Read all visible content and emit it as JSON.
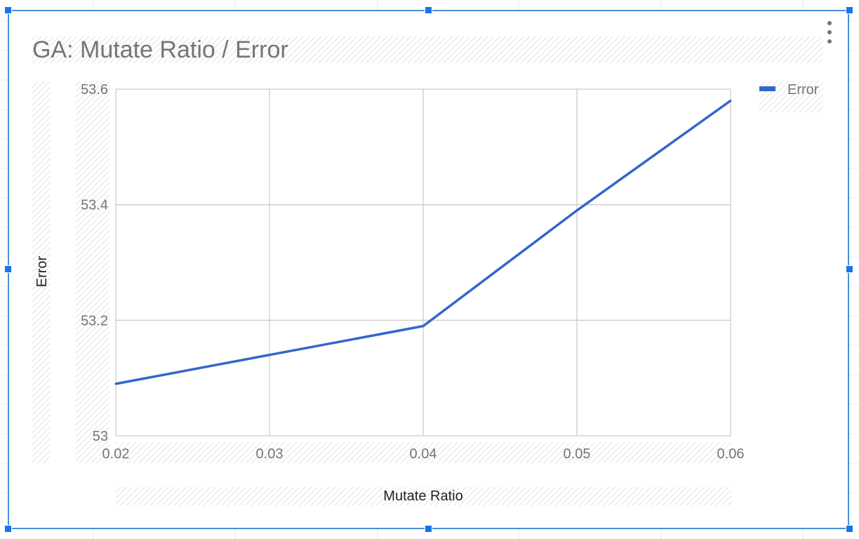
{
  "chart_data": {
    "type": "line",
    "title": "GA: Mutate Ratio / Error",
    "xlabel": "Mutate Ratio",
    "ylabel": "Error",
    "x": [
      0.02,
      0.03,
      0.04,
      0.05,
      0.06
    ],
    "x_ticks": [
      "0.02",
      "0.03",
      "0.04",
      "0.05",
      "0.06"
    ],
    "y_ticks": [
      "53",
      "53.2",
      "53.4",
      "53.6"
    ],
    "xlim": [
      0.02,
      0.06
    ],
    "ylim": [
      53,
      53.6
    ],
    "grid": true,
    "legend_position": "top-right",
    "series": [
      {
        "name": "Error",
        "color": "#3366cc",
        "values": [
          53.09,
          53.14,
          53.19,
          53.39,
          53.58
        ]
      }
    ]
  },
  "icons": {
    "menu": "more-vert-icon"
  }
}
